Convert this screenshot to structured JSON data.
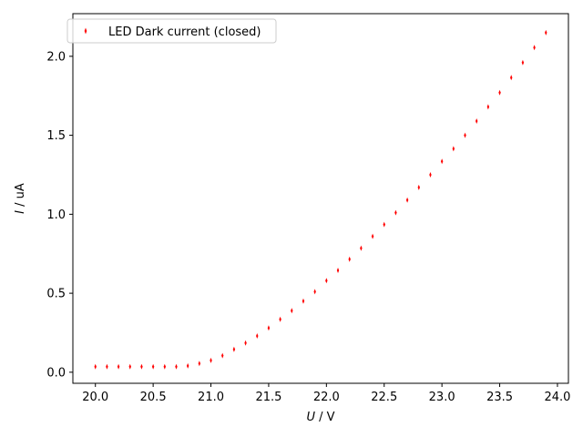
{
  "chart_data": {
    "type": "scatter",
    "x_label_var": "U",
    "x_label_unit": " / V",
    "y_label_var": "I",
    "y_label_unit": " / uA",
    "xlim": [
      19.805,
      24.095
    ],
    "ylim": [
      -0.07,
      2.27
    ],
    "x_ticks": [
      20.0,
      20.5,
      21.0,
      21.5,
      22.0,
      22.5,
      23.0,
      23.5,
      24.0
    ],
    "x_tick_labels": [
      "20.0",
      "20.5",
      "21.0",
      "21.5",
      "22.0",
      "22.5",
      "23.0",
      "23.5",
      "24.0"
    ],
    "y_ticks": [
      0.0,
      0.5,
      1.0,
      1.5,
      2.0
    ],
    "y_tick_labels": [
      "0.0",
      "0.5",
      "1.0",
      "1.5",
      "2.0"
    ],
    "legend_position": "top-left",
    "grid": false,
    "series": [
      {
        "name": "LED Dark current (closed)",
        "color": "#ff0000",
        "marker": "thin-diamond",
        "x": [
          20.0,
          20.1,
          20.2,
          20.3,
          20.4,
          20.5,
          20.6,
          20.7,
          20.8,
          20.9,
          21.0,
          21.1,
          21.2,
          21.3,
          21.4,
          21.5,
          21.6,
          21.7,
          21.8,
          21.9,
          22.0,
          22.1,
          22.2,
          22.3,
          22.4,
          22.5,
          22.6,
          22.7,
          22.8,
          22.9,
          23.0,
          23.1,
          23.2,
          23.3,
          23.4,
          23.5,
          23.6,
          23.7,
          23.8,
          23.9
        ],
        "y": [
          0.035,
          0.035,
          0.035,
          0.035,
          0.035,
          0.035,
          0.035,
          0.035,
          0.04,
          0.055,
          0.075,
          0.105,
          0.145,
          0.185,
          0.23,
          0.28,
          0.335,
          0.39,
          0.45,
          0.51,
          0.58,
          0.645,
          0.715,
          0.785,
          0.86,
          0.935,
          1.01,
          1.09,
          1.17,
          1.25,
          1.335,
          1.415,
          1.5,
          1.59,
          1.68,
          1.77,
          1.865,
          1.96,
          2.055,
          2.15
        ]
      }
    ]
  }
}
